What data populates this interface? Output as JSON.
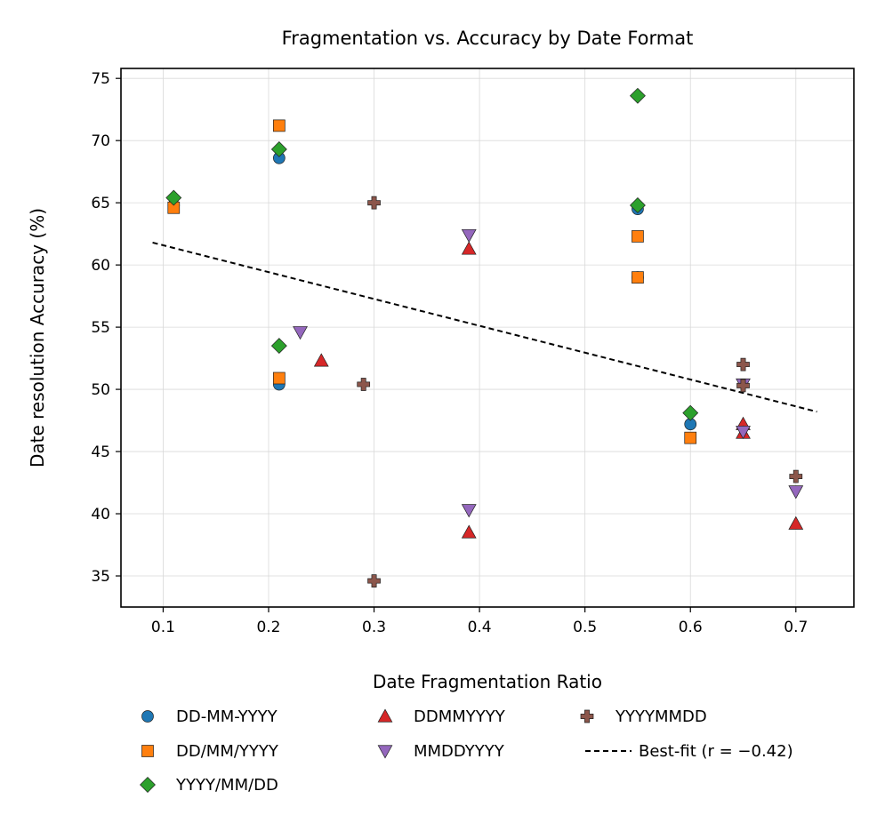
{
  "chart_data": {
    "type": "scatter",
    "title": "Fragmentation vs. Accuracy by Date Format",
    "xlabel": "Date Fragmentation Ratio",
    "ylabel": "Date resolution Accuracy (%)",
    "xlim": [
      0.06,
      0.755
    ],
    "ylim": [
      32.5,
      75.8
    ],
    "xticks": [
      0.1,
      0.2,
      0.3,
      0.4,
      0.5,
      0.6,
      0.7
    ],
    "xtick_labels": [
      "0.1",
      "0.2",
      "0.3",
      "0.4",
      "0.5",
      "0.6",
      "0.7"
    ],
    "yticks": [
      35,
      40,
      45,
      50,
      55,
      60,
      65,
      70,
      75
    ],
    "ytick_labels": [
      "35",
      "40",
      "45",
      "50",
      "55",
      "60",
      "65",
      "70",
      "75"
    ],
    "grid": true,
    "legend_position": "below",
    "series": [
      {
        "name": "DD-MM-YYYY",
        "marker": "circle",
        "color": "#1f77b4",
        "points": [
          [
            0.21,
            68.6
          ],
          [
            0.21,
            50.4
          ],
          [
            0.55,
            64.5
          ],
          [
            0.55,
            59.0
          ],
          [
            0.6,
            47.2
          ],
          [
            0.11,
            64.8
          ]
        ]
      },
      {
        "name": "DD/MM/YYYY",
        "marker": "square",
        "color": "#ff7f0e",
        "points": [
          [
            0.11,
            64.6
          ],
          [
            0.21,
            71.2
          ],
          [
            0.21,
            50.9
          ],
          [
            0.55,
            62.3
          ],
          [
            0.55,
            59.0
          ],
          [
            0.6,
            46.1
          ]
        ]
      },
      {
        "name": "YYYY/MM/DD",
        "marker": "diamond",
        "color": "#2ca02c",
        "points": [
          [
            0.11,
            65.4
          ],
          [
            0.21,
            69.3
          ],
          [
            0.21,
            53.5
          ],
          [
            0.55,
            73.6
          ],
          [
            0.55,
            64.8
          ],
          [
            0.6,
            48.1
          ]
        ]
      },
      {
        "name": "DDMMYYYY",
        "marker": "triangle-up",
        "color": "#d62728",
        "points": [
          [
            0.25,
            52.3
          ],
          [
            0.39,
            61.3
          ],
          [
            0.39,
            38.5
          ],
          [
            0.65,
            47.2
          ],
          [
            0.65,
            46.5
          ],
          [
            0.7,
            39.2
          ]
        ]
      },
      {
        "name": "MMDDYYYY",
        "marker": "triangle-down",
        "color": "#9467bd",
        "points": [
          [
            0.23,
            54.6
          ],
          [
            0.39,
            62.4
          ],
          [
            0.39,
            40.3
          ],
          [
            0.65,
            50.4
          ],
          [
            0.65,
            46.6
          ],
          [
            0.7,
            41.8
          ]
        ]
      },
      {
        "name": "YYYYMMDD",
        "marker": "plus",
        "color": "#8c564b",
        "points": [
          [
            0.29,
            50.4
          ],
          [
            0.3,
            65.0
          ],
          [
            0.3,
            34.6
          ],
          [
            0.65,
            52.0
          ],
          [
            0.65,
            50.3
          ],
          [
            0.7,
            43.0
          ]
        ]
      }
    ],
    "fit_line": {
      "name": "Best-fit",
      "r_label": "(r = −0.42)",
      "x": [
        0.09,
        0.72
      ],
      "y": [
        61.8,
        48.2
      ],
      "style": "dashed",
      "color": "#000000"
    }
  }
}
